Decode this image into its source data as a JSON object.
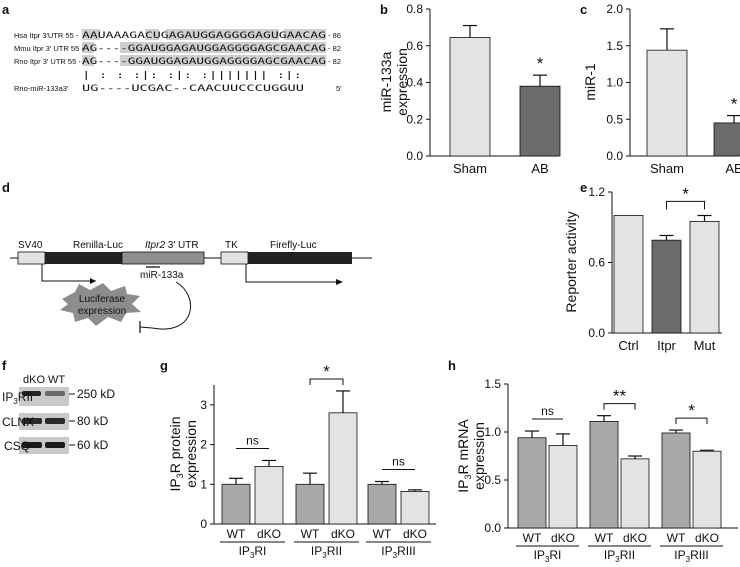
{
  "panels": {
    "a": {
      "letter": "a",
      "rows": [
        {
          "label": "Hsa Itpr 3′UTR 55 -",
          "seq": "AAUAAAGACUGAGAUGGAGGGGAGUGAACAG",
          "end": "- 86"
        },
        {
          "label": "Mmu Itpr 3′ UTR 55 -",
          "seq": "AG----GGAUGGAGAUGGAGGGGAGCGAACAG",
          "end": "- 82"
        },
        {
          "label": "Rno Itpr 3′ UTR 55 -",
          "seq": "AG----GGAUGGAGAUGGAGGGGAGCGAACAG",
          "end": "- 82"
        },
        {
          "label": "Rno-miR-133a3′",
          "seq": "UG----UCGAC--CAACUUCCCUGGUU",
          "end": "5′"
        }
      ],
      "match_line": "|    : :   :|:  :|: :|||||||  :|:"
    },
    "b": {
      "letter": "b"
    },
    "c": {
      "letter": "c"
    },
    "d": {
      "letter": "d",
      "sv40": "SV40",
      "renilla": "Renilla-Luc",
      "utr_gene": "Itpr2",
      "utr_suffix": "3′ UTR",
      "mirna": "miR-133a",
      "tk": "TK",
      "firefly": "Firefly-Luc",
      "starburst_line1": "Luciferase",
      "starburst_line2": "expression"
    },
    "e": {
      "letter": "e"
    },
    "f": {
      "letter": "f",
      "lanes": [
        "dKO",
        "WT"
      ],
      "bands": [
        {
          "label_main": "IP",
          "label_sub": "3",
          "label_tail": "RII",
          "size": "250 kD"
        },
        {
          "label_main": "CLNX",
          "label_sub": "",
          "label_tail": "",
          "size": "80 kD"
        },
        {
          "label_main": "CSQ",
          "label_sub": "",
          "label_tail": "",
          "size": "60 kD"
        }
      ]
    },
    "g": {
      "letter": "g"
    },
    "h": {
      "letter": "h"
    }
  },
  "chart_data": [
    {
      "id": "b",
      "type": "bar",
      "categories": [
        "Sham",
        "AB"
      ],
      "values": [
        0.645,
        0.38
      ],
      "errors": [
        0.065,
        0.06
      ],
      "colors": [
        "#e3e3e3",
        "#6b6b6b"
      ],
      "ylabel": "miR-133a expression",
      "ylim": [
        0,
        0.8
      ],
      "yticks": [
        "0.0",
        "0.2",
        "0.4",
        "0.6",
        "0.8"
      ],
      "annotations": [
        {
          "category": "AB",
          "text": "*"
        }
      ]
    },
    {
      "id": "c",
      "type": "bar",
      "categories": [
        "Sham",
        "AB"
      ],
      "values": [
        1.44,
        0.45
      ],
      "errors": [
        0.29,
        0.1
      ],
      "colors": [
        "#e3e3e3",
        "#6b6b6b"
      ],
      "ylabel": "miR-1",
      "ylim": [
        0,
        2.0
      ],
      "yticks": [
        "0.0",
        "0.5",
        "1.0",
        "1.5",
        "2.0"
      ],
      "annotations": [
        {
          "category": "AB",
          "text": "*"
        }
      ]
    },
    {
      "id": "e",
      "type": "bar",
      "categories": [
        "Ctrl",
        "Itpr",
        "Mut"
      ],
      "values": [
        1.0,
        0.79,
        0.95
      ],
      "errors": [
        0,
        0.04,
        0.05
      ],
      "colors": [
        "#e3e3e3",
        "#6b6b6b",
        "#e3e3e3"
      ],
      "ylabel": "Reporter activity",
      "ylim": [
        0,
        1.2
      ],
      "yticks": [
        "0.0",
        "0.6",
        "1.2"
      ],
      "annotations": [
        {
          "from": "Itpr",
          "to": "Mut",
          "text": "*"
        }
      ]
    },
    {
      "id": "g",
      "type": "bar",
      "groups": [
        "RI",
        "RII",
        "RIII"
      ],
      "group_prefix": "IP",
      "group_sub": "3",
      "bar_labels": [
        "WT",
        "dKO"
      ],
      "values": [
        [
          1.0,
          1.45
        ],
        [
          1.0,
          2.8
        ],
        [
          1.0,
          0.82
        ]
      ],
      "errors": [
        [
          0.15,
          0.15
        ],
        [
          0.28,
          0.55
        ],
        [
          0.07,
          0.04
        ]
      ],
      "colors": [
        "#a9a9a9",
        "#e3e3e3"
      ],
      "ylabel_main": "IP",
      "ylabel_sub": "3",
      "ylabel_tail": "R protein",
      "ylabel_line2": "expression",
      "ylim": [
        0,
        3.5
      ],
      "yticks": [
        "0",
        "1",
        "2",
        "3"
      ],
      "annotations": [
        {
          "group": "RI",
          "text": "ns"
        },
        {
          "group": "RII",
          "text": "*"
        },
        {
          "group": "RIII",
          "text": "ns"
        }
      ]
    },
    {
      "id": "h",
      "type": "bar",
      "groups": [
        "RI",
        "RII",
        "RIII"
      ],
      "group_prefix": "IP",
      "group_sub": "3",
      "bar_labels": [
        "WT",
        "dKO"
      ],
      "values": [
        [
          0.94,
          0.86
        ],
        [
          1.11,
          0.72
        ],
        [
          0.99,
          0.8
        ]
      ],
      "errors": [
        [
          0.07,
          0.12
        ],
        [
          0.06,
          0.03
        ],
        [
          0.03,
          0.01
        ]
      ],
      "colors": [
        "#a9a9a9",
        "#e3e3e3"
      ],
      "ylabel_main": "IP",
      "ylabel_sub": "3",
      "ylabel_tail": "R mRNA",
      "ylabel_line2": "expression",
      "ylim": [
        0,
        1.5
      ],
      "yticks": [
        "0.0",
        "0.5",
        "1.0",
        "1.5"
      ],
      "annotations": [
        {
          "group": "RI",
          "text": "ns"
        },
        {
          "group": "RII",
          "text": "**"
        },
        {
          "group": "RIII",
          "text": "*"
        }
      ]
    }
  ]
}
